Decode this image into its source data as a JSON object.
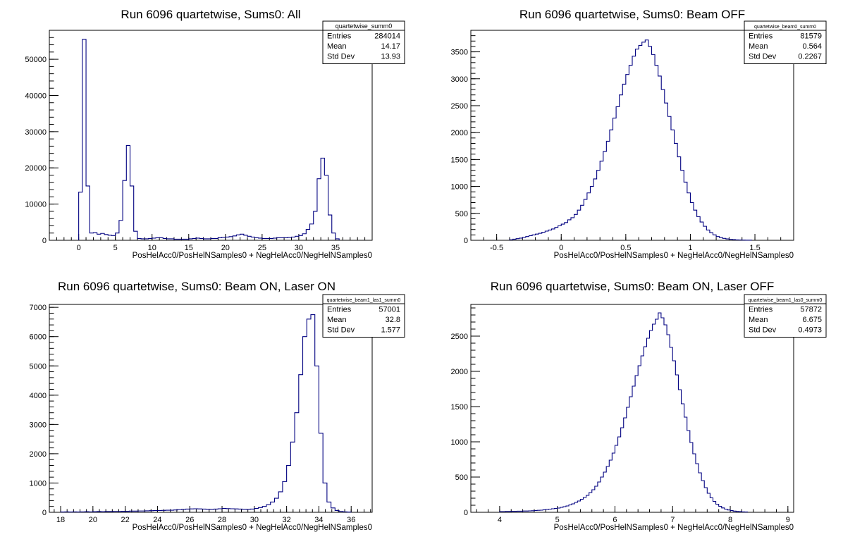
{
  "chart_data": [
    {
      "type": "histogram",
      "title": "Run 6096 quartetwise, Sums0: All",
      "xlabel": "PosHelAcc0/PosHelNSamples0 + NegHelAcc0/NegHelNSamples0",
      "ylabel": "",
      "xlim": [
        -4,
        40
      ],
      "ylim": [
        0,
        58000
      ],
      "xticks": [
        0,
        5,
        10,
        15,
        20,
        25,
        30,
        35
      ],
      "yticks": [
        0,
        10000,
        20000,
        30000,
        40000,
        50000
      ],
      "stats": {
        "name": "quartetwise_summ0",
        "entries": "284014",
        "mean": "14.17",
        "std_dev": "13.93"
      },
      "bin_width": 0.5,
      "bins": [
        [
          0.0,
          13300
        ],
        [
          0.5,
          55500
        ],
        [
          1.0,
          15000
        ],
        [
          1.5,
          2000
        ],
        [
          2.0,
          2100
        ],
        [
          2.5,
          1700
        ],
        [
          3.0,
          1900
        ],
        [
          3.5,
          1600
        ],
        [
          4.0,
          1400
        ],
        [
          4.5,
          1300
        ],
        [
          5.0,
          2000
        ],
        [
          5.5,
          5500
        ],
        [
          6.0,
          16500
        ],
        [
          6.5,
          26200
        ],
        [
          7.0,
          15000
        ],
        [
          7.5,
          2500
        ],
        [
          8.0,
          500
        ],
        [
          8.5,
          400
        ],
        [
          9.0,
          400
        ],
        [
          9.5,
          500
        ],
        [
          10.0,
          600
        ],
        [
          10.5,
          700
        ],
        [
          11.0,
          700
        ],
        [
          11.5,
          500
        ],
        [
          12.0,
          400
        ],
        [
          12.5,
          400
        ],
        [
          13.0,
          300
        ],
        [
          13.5,
          300
        ],
        [
          14.0,
          300
        ],
        [
          14.5,
          300
        ],
        [
          15.0,
          400
        ],
        [
          15.5,
          500
        ],
        [
          16.0,
          600
        ],
        [
          16.5,
          500
        ],
        [
          17.0,
          400
        ],
        [
          17.5,
          400
        ],
        [
          18.0,
          500
        ],
        [
          18.5,
          500
        ],
        [
          19.0,
          700
        ],
        [
          19.5,
          800
        ],
        [
          20.0,
          900
        ],
        [
          20.5,
          1000
        ],
        [
          21.0,
          1200
        ],
        [
          21.5,
          1500
        ],
        [
          22.0,
          1700
        ],
        [
          22.5,
          1400
        ],
        [
          23.0,
          1100
        ],
        [
          23.5,
          900
        ],
        [
          24.0,
          700
        ],
        [
          24.5,
          600
        ],
        [
          25.0,
          500
        ],
        [
          25.5,
          500
        ],
        [
          26.0,
          500
        ],
        [
          26.5,
          600
        ],
        [
          27.0,
          700
        ],
        [
          27.5,
          700
        ],
        [
          28.0,
          700
        ],
        [
          28.5,
          800
        ],
        [
          29.0,
          900
        ],
        [
          29.5,
          1100
        ],
        [
          30.0,
          1300
        ],
        [
          30.5,
          1800
        ],
        [
          31.0,
          3000
        ],
        [
          31.5,
          4500
        ],
        [
          32.0,
          8000
        ],
        [
          32.5,
          17000
        ],
        [
          33.0,
          22700
        ],
        [
          33.5,
          18000
        ],
        [
          34.0,
          7000
        ],
        [
          34.5,
          2000
        ],
        [
          35.0,
          400
        ]
      ]
    },
    {
      "type": "histogram",
      "title": "Run 6096 quartetwise, Sums0: Beam OFF",
      "xlabel": "PosHelAcc0/PosHelNSamples0 + NegHelAcc0/NegHelNSamples0",
      "ylabel": "",
      "xlim": [
        -0.7,
        1.8
      ],
      "ylim": [
        0,
        3900
      ],
      "xticks": [
        -0.5,
        0,
        0.5,
        1,
        1.5
      ],
      "yticks": [
        0,
        500,
        1000,
        1500,
        2000,
        2500,
        3000,
        3500
      ],
      "stats": {
        "name": "quartetwise_beam0_summ0",
        "entries": "81579",
        "mean": "0.564",
        "std_dev": "0.2267"
      },
      "bin_width": 0.025,
      "bins": [
        [
          -0.4,
          10
        ],
        [
          -0.375,
          20
        ],
        [
          -0.35,
          30
        ],
        [
          -0.325,
          40
        ],
        [
          -0.3,
          55
        ],
        [
          -0.275,
          70
        ],
        [
          -0.25,
          85
        ],
        [
          -0.225,
          100
        ],
        [
          -0.2,
          115
        ],
        [
          -0.175,
          130
        ],
        [
          -0.15,
          150
        ],
        [
          -0.125,
          170
        ],
        [
          -0.1,
          190
        ],
        [
          -0.075,
          210
        ],
        [
          -0.05,
          240
        ],
        [
          -0.025,
          270
        ],
        [
          0.0,
          300
        ],
        [
          0.025,
          330
        ],
        [
          0.05,
          380
        ],
        [
          0.075,
          420
        ],
        [
          0.1,
          480
        ],
        [
          0.125,
          560
        ],
        [
          0.15,
          650
        ],
        [
          0.175,
          760
        ],
        [
          0.2,
          880
        ],
        [
          0.225,
          1000
        ],
        [
          0.25,
          1140
        ],
        [
          0.275,
          1300
        ],
        [
          0.3,
          1470
        ],
        [
          0.325,
          1650
        ],
        [
          0.35,
          1840
        ],
        [
          0.375,
          2050
        ],
        [
          0.4,
          2270
        ],
        [
          0.425,
          2480
        ],
        [
          0.45,
          2700
        ],
        [
          0.475,
          2900
        ],
        [
          0.5,
          3080
        ],
        [
          0.525,
          3250
        ],
        [
          0.55,
          3420
        ],
        [
          0.575,
          3550
        ],
        [
          0.6,
          3620
        ],
        [
          0.625,
          3680
        ],
        [
          0.65,
          3720
        ],
        [
          0.675,
          3600
        ],
        [
          0.7,
          3450
        ],
        [
          0.725,
          3250
        ],
        [
          0.75,
          3050
        ],
        [
          0.775,
          2800
        ],
        [
          0.8,
          2550
        ],
        [
          0.825,
          2300
        ],
        [
          0.85,
          2050
        ],
        [
          0.875,
          1800
        ],
        [
          0.9,
          1550
        ],
        [
          0.925,
          1300
        ],
        [
          0.95,
          1080
        ],
        [
          0.975,
          880
        ],
        [
          1.0,
          700
        ],
        [
          1.025,
          560
        ],
        [
          1.05,
          440
        ],
        [
          1.075,
          340
        ],
        [
          1.1,
          260
        ],
        [
          1.125,
          190
        ],
        [
          1.15,
          140
        ],
        [
          1.175,
          100
        ],
        [
          1.2,
          70
        ],
        [
          1.225,
          50
        ],
        [
          1.25,
          35
        ],
        [
          1.275,
          25
        ],
        [
          1.3,
          18
        ],
        [
          1.325,
          12
        ],
        [
          1.35,
          8
        ],
        [
          1.375,
          6
        ],
        [
          1.4,
          4
        ],
        [
          1.425,
          3
        ],
        [
          1.45,
          2
        ]
      ]
    },
    {
      "type": "histogram",
      "title": "Run 6096 quartetwise, Sums0: Beam ON, Laser ON",
      "xlabel": "PosHelAcc0/PosHelNSamples0 + NegHelAcc0/NegHelNSamples0",
      "ylabel": "",
      "xlim": [
        17.3,
        37.3
      ],
      "ylim": [
        0,
        7100
      ],
      "xticks": [
        18,
        20,
        22,
        24,
        26,
        28,
        30,
        32,
        34,
        36
      ],
      "yticks": [
        0,
        1000,
        2000,
        3000,
        4000,
        5000,
        6000,
        7000
      ],
      "stats": {
        "name": "quartetwise_beam1_las1_summ0",
        "entries": "57001",
        "mean": "32.8",
        "std_dev": "1.577"
      },
      "bin_width": 0.25,
      "bins": [
        [
          18.0,
          10
        ],
        [
          18.25,
          15
        ],
        [
          18.5,
          10
        ],
        [
          18.75,
          15
        ],
        [
          19.0,
          10
        ],
        [
          19.25,
          15
        ],
        [
          19.5,
          20
        ],
        [
          19.75,
          15
        ],
        [
          20.0,
          20
        ],
        [
          20.25,
          25
        ],
        [
          20.5,
          20
        ],
        [
          20.75,
          25
        ],
        [
          21.0,
          25
        ],
        [
          21.25,
          30
        ],
        [
          21.5,
          30
        ],
        [
          21.75,
          35
        ],
        [
          22.0,
          35
        ],
        [
          22.25,
          40
        ],
        [
          22.5,
          40
        ],
        [
          22.75,
          45
        ],
        [
          23.0,
          45
        ],
        [
          23.25,
          50
        ],
        [
          23.5,
          55
        ],
        [
          23.75,
          60
        ],
        [
          24.0,
          60
        ],
        [
          24.25,
          65
        ],
        [
          24.5,
          70
        ],
        [
          24.75,
          70
        ],
        [
          25.0,
          80
        ],
        [
          25.25,
          90
        ],
        [
          25.5,
          100
        ],
        [
          25.75,
          110
        ],
        [
          26.0,
          115
        ],
        [
          26.25,
          120
        ],
        [
          26.5,
          115
        ],
        [
          26.75,
          110
        ],
        [
          27.0,
          105
        ],
        [
          27.25,
          100
        ],
        [
          27.5,
          110
        ],
        [
          27.75,
          120
        ],
        [
          28.0,
          130
        ],
        [
          28.25,
          125
        ],
        [
          28.5,
          120
        ],
        [
          28.75,
          115
        ],
        [
          29.0,
          110
        ],
        [
          29.25,
          105
        ],
        [
          29.5,
          100
        ],
        [
          29.75,
          110
        ],
        [
          30.0,
          130
        ],
        [
          30.25,
          160
        ],
        [
          30.5,
          200
        ],
        [
          30.75,
          260
        ],
        [
          31.0,
          350
        ],
        [
          31.25,
          480
        ],
        [
          31.5,
          700
        ],
        [
          31.75,
          1050
        ],
        [
          32.0,
          1600
        ],
        [
          32.25,
          2400
        ],
        [
          32.5,
          3400
        ],
        [
          32.75,
          4700
        ],
        [
          33.0,
          6000
        ],
        [
          33.25,
          6600
        ],
        [
          33.5,
          6750
        ],
        [
          33.75,
          5000
        ],
        [
          34.0,
          2700
        ],
        [
          34.25,
          1000
        ],
        [
          34.5,
          350
        ],
        [
          34.75,
          150
        ],
        [
          35.0,
          60
        ],
        [
          35.25,
          30
        ],
        [
          35.5,
          15
        ],
        [
          35.75,
          8
        ]
      ]
    },
    {
      "type": "histogram",
      "title": "Run 6096 quartetwise, Sums0: Beam ON, Laser OFF",
      "xlabel": "PosHelAcc0/PosHelNSamples0 + NegHelAcc0/NegHelNSamples0",
      "ylabel": "",
      "xlim": [
        3.5,
        9.1
      ],
      "ylim": [
        0,
        2950
      ],
      "xticks": [
        4,
        5,
        6,
        7,
        8,
        9
      ],
      "yticks": [
        0,
        500,
        1000,
        1500,
        2000,
        2500
      ],
      "stats": {
        "name": "quartetwise_beam1_las0_summ0",
        "entries": "57872",
        "mean": "6.675",
        "std_dev": "0.4973"
      },
      "bin_width": 0.05,
      "bins": [
        [
          4.0,
          10
        ],
        [
          4.05,
          10
        ],
        [
          4.1,
          12
        ],
        [
          4.15,
          12
        ],
        [
          4.2,
          14
        ],
        [
          4.25,
          14
        ],
        [
          4.3,
          16
        ],
        [
          4.35,
          16
        ],
        [
          4.4,
          18
        ],
        [
          4.45,
          18
        ],
        [
          4.5,
          20
        ],
        [
          4.55,
          22
        ],
        [
          4.6,
          25
        ],
        [
          4.65,
          28
        ],
        [
          4.7,
          30
        ],
        [
          4.75,
          35
        ],
        [
          4.8,
          40
        ],
        [
          4.85,
          45
        ],
        [
          4.9,
          50
        ],
        [
          4.95,
          55
        ],
        [
          5.0,
          60
        ],
        [
          5.05,
          70
        ],
        [
          5.1,
          80
        ],
        [
          5.15,
          90
        ],
        [
          5.2,
          105
        ],
        [
          5.25,
          120
        ],
        [
          5.3,
          140
        ],
        [
          5.35,
          160
        ],
        [
          5.4,
          185
        ],
        [
          5.45,
          210
        ],
        [
          5.5,
          240
        ],
        [
          5.55,
          280
        ],
        [
          5.6,
          320
        ],
        [
          5.65,
          370
        ],
        [
          5.7,
          430
        ],
        [
          5.75,
          500
        ],
        [
          5.8,
          570
        ],
        [
          5.85,
          650
        ],
        [
          5.9,
          740
        ],
        [
          5.95,
          840
        ],
        [
          6.0,
          950
        ],
        [
          6.05,
          1070
        ],
        [
          6.1,
          1200
        ],
        [
          6.15,
          1340
        ],
        [
          6.2,
          1490
        ],
        [
          6.25,
          1640
        ],
        [
          6.3,
          1790
        ],
        [
          6.35,
          1940
        ],
        [
          6.4,
          2080
        ],
        [
          6.45,
          2220
        ],
        [
          6.5,
          2350
        ],
        [
          6.55,
          2470
        ],
        [
          6.6,
          2580
        ],
        [
          6.65,
          2670
        ],
        [
          6.7,
          2740
        ],
        [
          6.75,
          2830
        ],
        [
          6.8,
          2760
        ],
        [
          6.85,
          2660
        ],
        [
          6.9,
          2520
        ],
        [
          6.95,
          2340
        ],
        [
          7.0,
          2150
        ],
        [
          7.05,
          1950
        ],
        [
          7.1,
          1740
        ],
        [
          7.15,
          1540
        ],
        [
          7.2,
          1350
        ],
        [
          7.25,
          1160
        ],
        [
          7.3,
          990
        ],
        [
          7.35,
          830
        ],
        [
          7.4,
          690
        ],
        [
          7.45,
          560
        ],
        [
          7.5,
          450
        ],
        [
          7.55,
          350
        ],
        [
          7.6,
          270
        ],
        [
          7.65,
          205
        ],
        [
          7.7,
          155
        ],
        [
          7.75,
          115
        ],
        [
          7.8,
          85
        ],
        [
          7.85,
          62
        ],
        [
          7.9,
          45
        ],
        [
          7.95,
          33
        ],
        [
          8.0,
          24
        ],
        [
          8.05,
          17
        ],
        [
          8.1,
          12
        ],
        [
          8.15,
          9
        ],
        [
          8.2,
          6
        ],
        [
          8.25,
          4
        ]
      ]
    }
  ]
}
